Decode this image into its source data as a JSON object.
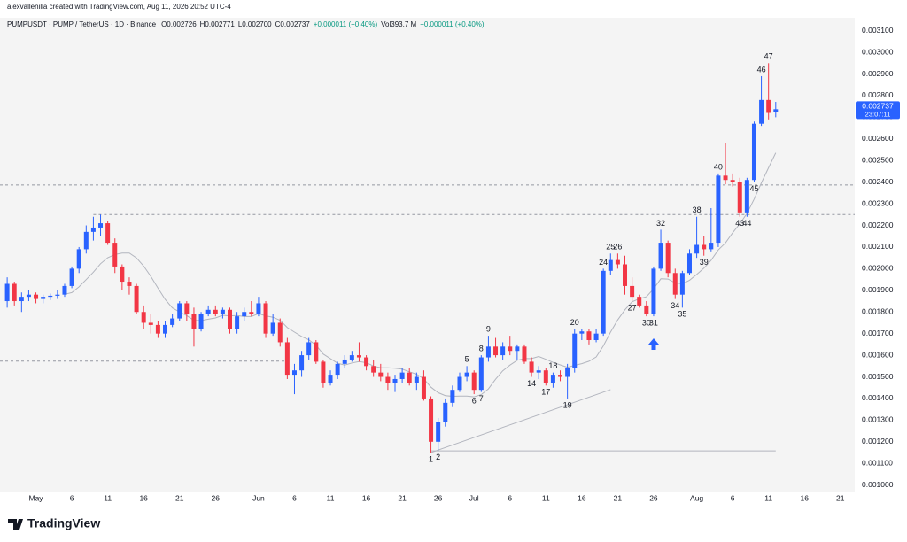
{
  "header": {
    "credit": "alexvallenilla created with TradingView.com, Aug 11, 2026 20:52 UTC-4",
    "symbol": "PUMPUSDT · PUMP / TetherUS · 1D · Binance",
    "ohlc": [
      "O0.002726",
      "H0.002771",
      "L0.002700",
      "C0.002737"
    ],
    "change": "+0.000011 (+0.40%)",
    "volume": "Vol393.7 M"
  },
  "footer": {
    "logo": "TradingView"
  },
  "chart_data": {
    "type": "candlestick",
    "x": [
      "2026-04-27",
      "2026-04-28",
      "2026-04-29",
      "2026-04-30",
      "2026-05-01",
      "2026-05-02",
      "2026-05-03",
      "2026-05-04",
      "2026-05-05",
      "2026-05-06",
      "2026-05-07",
      "2026-05-08",
      "2026-05-09",
      "2026-05-10",
      "2026-05-11",
      "2026-05-12",
      "2026-05-13",
      "2026-05-14",
      "2026-05-15",
      "2026-05-16",
      "2026-05-17",
      "2026-05-18",
      "2026-05-19",
      "2026-05-20",
      "2026-05-21",
      "2026-05-22",
      "2026-05-23",
      "2026-05-24",
      "2026-05-25",
      "2026-05-26",
      "2026-05-27",
      "2026-05-28",
      "2026-05-29",
      "2026-05-30",
      "2026-05-31",
      "2026-06-01",
      "2026-06-02",
      "2026-06-03",
      "2026-06-04",
      "2026-06-05",
      "2026-06-06",
      "2026-06-07",
      "2026-06-08",
      "2026-06-09",
      "2026-06-10",
      "2026-06-11",
      "2026-06-12",
      "2026-06-13",
      "2026-06-14",
      "2026-06-15",
      "2026-06-16",
      "2026-06-17",
      "2026-06-18",
      "2026-06-19",
      "2026-06-20",
      "2026-06-21",
      "2026-06-22",
      "2026-06-23",
      "2026-06-24",
      "2026-06-25",
      "2026-06-26",
      "2026-06-27",
      "2026-06-28",
      "2026-06-29",
      "2026-06-30",
      "2026-07-01",
      "2026-07-02",
      "2026-07-03",
      "2026-07-04",
      "2026-07-05",
      "2026-07-06",
      "2026-07-07",
      "2026-07-08",
      "2026-07-09",
      "2026-07-10",
      "2026-07-11",
      "2026-07-12",
      "2026-07-13",
      "2026-07-14",
      "2026-07-15",
      "2026-07-16",
      "2026-07-17",
      "2026-07-18",
      "2026-07-19",
      "2026-07-20",
      "2026-07-21",
      "2026-07-22",
      "2026-07-23",
      "2026-07-24",
      "2026-07-25",
      "2026-07-26",
      "2026-07-27",
      "2026-07-28",
      "2026-07-29",
      "2026-07-30",
      "2026-07-31",
      "2026-08-01",
      "2026-08-02",
      "2026-08-03",
      "2026-08-04",
      "2026-08-05",
      "2026-08-06",
      "2026-08-07",
      "2026-08-08",
      "2026-08-09",
      "2026-08-10",
      "2026-08-11",
      "2026-08-12"
    ],
    "open": [
      0.00185,
      0.00193,
      0.00185,
      0.00187,
      0.00188,
      0.00186,
      0.00187,
      0.001875,
      0.00188,
      0.00192,
      0.002,
      0.00209,
      0.00217,
      0.00219,
      0.00221,
      0.00212,
      0.00201,
      0.00194,
      0.00192,
      0.0018,
      0.00175,
      0.00174,
      0.0017,
      0.00174,
      0.00177,
      0.00184,
      0.00179,
      0.00172,
      0.00179,
      0.00181,
      0.00179,
      0.00181,
      0.00172,
      0.00178,
      0.0018,
      0.00179,
      0.00184,
      0.0017,
      0.00175,
      0.00166,
      0.00151,
      0.00153,
      0.0016,
      0.00166,
      0.00157,
      0.00147,
      0.00151,
      0.00156,
      0.00158,
      0.0016,
      0.00159,
      0.00155,
      0.00152,
      0.0015,
      0.00147,
      0.00149,
      0.00152,
      0.00147,
      0.0015,
      0.0014,
      0.0012,
      0.00129,
      0.00138,
      0.00144,
      0.0015,
      0.00152,
      0.00144,
      0.00159,
      0.00164,
      0.0016,
      0.00164,
      0.00162,
      0.00164,
      0.00157,
      0.00152,
      0.00153,
      0.00147,
      0.00151,
      0.0015,
      0.00154,
      0.0017,
      0.00171,
      0.00167,
      0.0017,
      0.00199,
      0.00204,
      0.00202,
      0.00192,
      0.00187,
      0.00183,
      0.00179,
      0.002,
      0.00212,
      0.00198,
      0.00188,
      0.00198,
      0.00207,
      0.00211,
      0.00209,
      0.00212,
      0.00243,
      0.00241,
      0.0024,
      0.00226,
      0.00241,
      0.00267,
      0.00278,
      0.002726
    ],
    "high": [
      0.00196,
      0.00194,
      0.00189,
      0.0019,
      0.00189,
      0.00188,
      0.001885,
      0.0019,
      0.00193,
      0.00201,
      0.0021,
      0.0022,
      0.00224,
      0.00225,
      0.00222,
      0.00214,
      0.00202,
      0.00196,
      0.00193,
      0.00183,
      0.00179,
      0.00176,
      0.00176,
      0.00179,
      0.00185,
      0.00185,
      0.00182,
      0.0018,
      0.00183,
      0.00183,
      0.00182,
      0.00182,
      0.0018,
      0.00182,
      0.00185,
      0.00187,
      0.00185,
      0.00179,
      0.00177,
      0.00168,
      0.00156,
      0.00162,
      0.00168,
      0.00167,
      0.00158,
      0.00153,
      0.00157,
      0.0016,
      0.00162,
      0.00166,
      0.0016,
      0.00158,
      0.00156,
      0.00152,
      0.00151,
      0.00154,
      0.00154,
      0.00152,
      0.00153,
      0.00141,
      0.00131,
      0.0014,
      0.00146,
      0.00152,
      0.00155,
      0.00153,
      0.0016,
      0.00169,
      0.00168,
      0.00166,
      0.00169,
      0.00165,
      0.00165,
      0.00159,
      0.00155,
      0.00154,
      0.00152,
      0.00153,
      0.00156,
      0.00172,
      0.00172,
      0.00172,
      0.00172,
      0.002,
      0.00207,
      0.00207,
      0.00206,
      0.00196,
      0.00188,
      0.00185,
      0.00201,
      0.00218,
      0.00213,
      0.002,
      0.00199,
      0.00209,
      0.00224,
      0.00215,
      0.00228,
      0.00244,
      0.00258,
      0.00244,
      0.00242,
      0.00242,
      0.00268,
      0.00289,
      0.00295,
      0.002771
    ],
    "low": [
      0.00182,
      0.00183,
      0.0018,
      0.00185,
      0.00184,
      0.00184,
      0.001855,
      0.00186,
      0.00187,
      0.00191,
      0.00198,
      0.00207,
      0.00213,
      0.00215,
      0.00211,
      0.00198,
      0.0019,
      0.00188,
      0.00179,
      0.00172,
      0.0017,
      0.00168,
      0.00168,
      0.00173,
      0.00176,
      0.00176,
      0.00164,
      0.00171,
      0.00178,
      0.00178,
      0.00177,
      0.0017,
      0.0017,
      0.00176,
      0.00178,
      0.00178,
      0.00168,
      0.00169,
      0.00164,
      0.00149,
      0.00142,
      0.0015,
      0.00158,
      0.00156,
      0.00145,
      0.00146,
      0.00149,
      0.00154,
      0.00157,
      0.00157,
      0.00153,
      0.0015,
      0.00148,
      0.00144,
      0.00143,
      0.00147,
      0.00146,
      0.00144,
      0.00139,
      0.00115,
      0.00116,
      0.00127,
      0.00136,
      0.00143,
      0.00148,
      0.00142,
      0.00143,
      0.00157,
      0.00159,
      0.00158,
      0.0016,
      0.00158,
      0.00156,
      0.0015,
      0.00149,
      0.00146,
      0.00145,
      0.00148,
      0.0014,
      0.00152,
      0.00167,
      0.00165,
      0.00166,
      0.00169,
      0.00197,
      0.002,
      0.00188,
      0.00185,
      0.00182,
      0.00178,
      0.00178,
      0.00199,
      0.00196,
      0.00186,
      0.00182,
      0.00197,
      0.00205,
      0.00206,
      0.00208,
      0.0021,
      0.00239,
      0.00238,
      0.00224,
      0.00224,
      0.0024,
      0.00266,
      0.00269,
      0.0027
    ],
    "close": [
      0.00193,
      0.00185,
      0.00187,
      0.00188,
      0.00186,
      0.00187,
      0.001875,
      0.00188,
      0.00192,
      0.002,
      0.00209,
      0.00217,
      0.00219,
      0.00221,
      0.00212,
      0.00201,
      0.00194,
      0.00192,
      0.0018,
      0.00175,
      0.00174,
      0.0017,
      0.00174,
      0.00177,
      0.00184,
      0.00179,
      0.00172,
      0.00179,
      0.00181,
      0.00179,
      0.00181,
      0.00172,
      0.00178,
      0.0018,
      0.00179,
      0.00184,
      0.0017,
      0.00175,
      0.00166,
      0.00151,
      0.00153,
      0.0016,
      0.00166,
      0.00157,
      0.00147,
      0.00151,
      0.00156,
      0.00158,
      0.0016,
      0.00159,
      0.00155,
      0.00152,
      0.0015,
      0.00147,
      0.00149,
      0.00152,
      0.00147,
      0.0015,
      0.0014,
      0.0012,
      0.00129,
      0.00138,
      0.00144,
      0.0015,
      0.00152,
      0.00144,
      0.00159,
      0.00164,
      0.0016,
      0.00164,
      0.00162,
      0.00164,
      0.00157,
      0.00152,
      0.00153,
      0.00147,
      0.00151,
      0.0015,
      0.00154,
      0.0017,
      0.00171,
      0.00167,
      0.0017,
      0.00199,
      0.00204,
      0.00202,
      0.00192,
      0.00187,
      0.00183,
      0.00179,
      0.002,
      0.00212,
      0.00198,
      0.00188,
      0.00198,
      0.00207,
      0.00211,
      0.00209,
      0.00212,
      0.00243,
      0.00241,
      0.0024,
      0.00226,
      0.00241,
      0.00267,
      0.00278,
      0.00272,
      0.002737
    ],
    "up_color": "#2962ff",
    "down_color": "#f23645",
    "moving_average": {
      "period": 9,
      "color": "#b2b5be"
    },
    "countdown": "23:07:11",
    "xlim": [
      "2026-04-26",
      "2026-08-23"
    ],
    "xticks": [
      {
        "value": "2026-05-01",
        "label": "May"
      },
      {
        "value": "2026-05-06",
        "label": "6"
      },
      {
        "value": "2026-05-11",
        "label": "11"
      },
      {
        "value": "2026-05-16",
        "label": "16"
      },
      {
        "value": "2026-05-21",
        "label": "21"
      },
      {
        "value": "2026-05-26",
        "label": "26"
      },
      {
        "value": "2026-06-01",
        "label": "Jun"
      },
      {
        "value": "2026-06-06",
        "label": "6"
      },
      {
        "value": "2026-06-11",
        "label": "11"
      },
      {
        "value": "2026-06-16",
        "label": "16"
      },
      {
        "value": "2026-06-21",
        "label": "21"
      },
      {
        "value": "2026-06-26",
        "label": "26"
      },
      {
        "value": "2026-07-01",
        "label": "Jul"
      },
      {
        "value": "2026-07-06",
        "label": "6"
      },
      {
        "value": "2026-07-11",
        "label": "11"
      },
      {
        "value": "2026-07-16",
        "label": "16"
      },
      {
        "value": "2026-07-21",
        "label": "21"
      },
      {
        "value": "2026-07-26",
        "label": "26"
      },
      {
        "value": "2026-08-01",
        "label": "Aug"
      },
      {
        "value": "2026-08-06",
        "label": "6"
      },
      {
        "value": "2026-08-11",
        "label": "11"
      },
      {
        "value": "2026-08-16",
        "label": "16"
      },
      {
        "value": "2026-08-21",
        "label": "21"
      }
    ],
    "ylim": [
      0.00097,
      0.00316
    ],
    "yticks": [
      {
        "value": 0.0031,
        "label": "0.003100"
      },
      {
        "value": 0.003,
        "label": "0.003000"
      },
      {
        "value": 0.0029,
        "label": "0.002900"
      },
      {
        "value": 0.0028,
        "label": "0.002800"
      },
      {
        "value": 0.0027,
        "label": "0.002700"
      },
      {
        "value": 0.0026,
        "label": "0.002600"
      },
      {
        "value": 0.0025,
        "label": "0.002500"
      },
      {
        "value": 0.0024,
        "label": "0.002400"
      },
      {
        "value": 0.0023,
        "label": "0.002300"
      },
      {
        "value": 0.0022,
        "label": "0.002200"
      },
      {
        "value": 0.0021,
        "label": "0.002100"
      },
      {
        "value": 0.002,
        "label": "0.002000"
      },
      {
        "value": 0.0019,
        "label": "0.001900"
      },
      {
        "value": 0.0018,
        "label": "0.001800"
      },
      {
        "value": 0.0017,
        "label": "0.001700"
      },
      {
        "value": 0.0016,
        "label": "0.001600"
      },
      {
        "value": 0.0015,
        "label": "0.001500"
      },
      {
        "value": 0.0014,
        "label": "0.001400"
      },
      {
        "value": 0.0013,
        "label": "0.001300"
      },
      {
        "value": 0.0012,
        "label": "0.001200"
      },
      {
        "value": 0.0011,
        "label": "0.001100"
      },
      {
        "value": 0.001,
        "label": "0.001000"
      }
    ],
    "grid": false,
    "lines": [
      {
        "from": [
          "2026-04-26",
          0.002387
        ],
        "to": [
          "2026-08-23",
          0.002387
        ],
        "style": "dashed"
      },
      {
        "from": [
          "2026-05-09",
          0.00225
        ],
        "to": [
          "2026-08-23",
          0.00225
        ],
        "style": "dashed"
      },
      {
        "from": [
          "2026-04-26",
          0.001573
        ],
        "to": [
          "2026-06-05",
          0.001573
        ],
        "style": "dashed"
      },
      {
        "from": [
          "2026-06-25",
          0.00115
        ],
        "to": [
          "2026-07-20",
          0.001441
        ],
        "style": "solid"
      },
      {
        "from": [
          "2026-06-25",
          0.001158
        ],
        "to": [
          "2026-08-12",
          0.001158
        ],
        "style": "solid"
      }
    ],
    "annotations": [
      {
        "text": "1",
        "x": "2026-06-25",
        "pos": "below"
      },
      {
        "text": "2",
        "x": "2026-06-26",
        "pos": "below"
      },
      {
        "text": "5",
        "x": "2026-06-30",
        "pos": "above"
      },
      {
        "text": "6",
        "x": "2026-07-01",
        "pos": "below"
      },
      {
        "text": "7",
        "x": "2026-07-02",
        "pos": "below"
      },
      {
        "text": "8",
        "x": "2026-07-02",
        "pos": "above"
      },
      {
        "text": "9",
        "x": "2026-07-03",
        "pos": "above"
      },
      {
        "text": "14",
        "x": "2026-07-09",
        "pos": "below"
      },
      {
        "text": "17",
        "x": "2026-07-11",
        "pos": "below"
      },
      {
        "text": "18",
        "x": "2026-07-12",
        "pos": "above"
      },
      {
        "text": "19",
        "x": "2026-07-14",
        "pos": "below"
      },
      {
        "text": "20",
        "x": "2026-07-15",
        "pos": "above"
      },
      {
        "text": "24",
        "x": "2026-07-19",
        "pos": "above"
      },
      {
        "text": "25",
        "x": "2026-07-20",
        "pos": "above"
      },
      {
        "text": "26",
        "x": "2026-07-21",
        "pos": "above"
      },
      {
        "text": "27",
        "x": "2026-07-23",
        "pos": "below"
      },
      {
        "text": "30",
        "x": "2026-07-25",
        "pos": "below"
      },
      {
        "text": "31",
        "x": "2026-07-26",
        "pos": "below"
      },
      {
        "text": "32",
        "x": "2026-07-27",
        "pos": "above"
      },
      {
        "text": "34",
        "x": "2026-07-29",
        "pos": "below"
      },
      {
        "text": "35",
        "x": "2026-07-30",
        "pos": "below"
      },
      {
        "text": "38",
        "x": "2026-08-01",
        "pos": "above"
      },
      {
        "text": "39",
        "x": "2026-08-02",
        "pos": "below"
      },
      {
        "text": "40",
        "x": "2026-08-04",
        "pos": "above"
      },
      {
        "text": "43",
        "x": "2026-08-07",
        "pos": "below"
      },
      {
        "text": "44",
        "x": "2026-08-08",
        "pos": "below"
      },
      {
        "text": "45",
        "x": "2026-08-09",
        "pos": "below"
      },
      {
        "text": "46",
        "x": "2026-08-10",
        "pos": "above"
      },
      {
        "text": "47",
        "x": "2026-08-11",
        "pos": "above"
      }
    ]
  }
}
